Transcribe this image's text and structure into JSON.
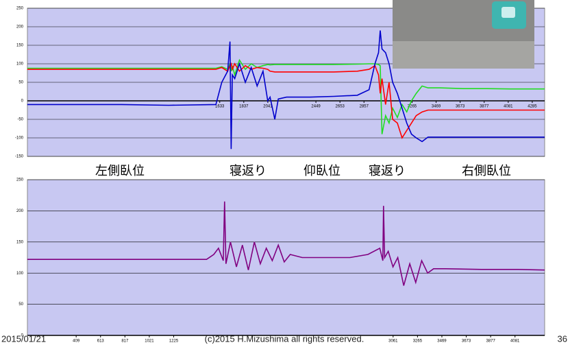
{
  "chart_data": [
    {
      "type": "line",
      "xlim": [
        1,
        4390
      ],
      "ylim": [
        -150,
        250
      ],
      "yticks": [
        -150,
        -100,
        -50,
        0,
        50,
        100,
        150,
        200,
        250
      ],
      "xticks": [
        1633,
        1837,
        2041,
        2449,
        2653,
        2857,
        3265,
        3469,
        3673,
        3877,
        4081,
        4285
      ],
      "grid": true,
      "x_axis_at": 0,
      "x": [
        0,
        400,
        800,
        1200,
        1600,
        1650,
        1700,
        1720,
        1730,
        1740,
        1760,
        1800,
        1850,
        1900,
        1950,
        2000,
        2040,
        2060,
        2100,
        2130,
        2200,
        2400,
        2600,
        2800,
        2900,
        2950,
        2980,
        2995,
        3010,
        3040,
        3070,
        3100,
        3140,
        3180,
        3220,
        3260,
        3300,
        3350,
        3400,
        3500,
        3700,
        3900,
        4100,
        4390
      ],
      "series": [
        {
          "color": "#22dd22",
          "values": [
            88,
            88,
            88,
            88,
            88,
            92,
            85,
            100,
            80,
            95,
            70,
            110,
            85,
            100,
            90,
            95,
            98,
            97,
            98,
            98,
            98,
            98,
            98,
            99,
            100,
            100,
            98,
            95,
            -90,
            -40,
            -60,
            -20,
            -45,
            -10,
            -30,
            0,
            20,
            40,
            35,
            35,
            33,
            33,
            32,
            32
          ]
        },
        {
          "color": "#ff0000",
          "values": [
            85,
            85,
            85,
            85,
            85,
            90,
            80,
            95,
            100,
            85,
            100,
            80,
            95,
            85,
            90,
            88,
            85,
            80,
            78,
            78,
            78,
            78,
            78,
            80,
            85,
            95,
            70,
            20,
            60,
            -10,
            50,
            -50,
            -60,
            -100,
            -80,
            -60,
            -40,
            -30,
            -25,
            -25,
            -25,
            -25,
            -25,
            -25
          ]
        },
        {
          "color": "#0000cc",
          "values": [
            -10,
            -10,
            -10,
            -12,
            -10,
            50,
            80,
            160,
            -130,
            70,
            60,
            100,
            50,
            90,
            40,
            80,
            0,
            10,
            -50,
            5,
            10,
            10,
            12,
            15,
            30,
            100,
            130,
            190,
            140,
            130,
            100,
            50,
            20,
            -20,
            -60,
            -90,
            -100,
            -110,
            -98,
            -98,
            -98,
            -98,
            -98,
            -98
          ]
        }
      ]
    },
    {
      "type": "line",
      "xlim": [
        1,
        4329
      ],
      "ylim": [
        0,
        250
      ],
      "yticks": [
        0,
        50,
        100,
        150,
        200,
        250
      ],
      "xticks": [
        409,
        613,
        817,
        1021,
        1225,
        3061,
        3265,
        3469,
        3673,
        3877,
        4081
      ],
      "grid": true,
      "x_axis_at": 0,
      "x": [
        0,
        500,
        1000,
        1500,
        1560,
        1600,
        1640,
        1651,
        1662,
        1700,
        1750,
        1800,
        1850,
        1900,
        1950,
        2000,
        2050,
        2100,
        2150,
        2200,
        2300,
        2500,
        2700,
        2850,
        2950,
        2975,
        2981,
        2990,
        3020,
        3060,
        3100,
        3150,
        3200,
        3250,
        3300,
        3350,
        3400,
        3500,
        3800,
        4100,
        4329
      ],
      "series": [
        {
          "color": "#800080",
          "values": [
            122,
            122,
            122,
            122,
            130,
            140,
            120,
            215,
            115,
            150,
            110,
            145,
            105,
            150,
            115,
            140,
            120,
            145,
            118,
            130,
            125,
            125,
            125,
            130,
            140,
            120,
            208,
            125,
            135,
            110,
            125,
            80,
            115,
            85,
            120,
            100,
            107,
            107,
            106,
            106,
            105
          ]
        }
      ]
    }
  ],
  "annotations": [
    "左側臥位",
    "寝返り",
    "仰臥位",
    "寝返り",
    "右側臥位"
  ],
  "footer": {
    "date": "2015/01/21",
    "copyright": "(c)2015 H.Mizushima all rights reserved.",
    "page": "36"
  }
}
